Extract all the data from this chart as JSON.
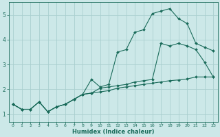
{
  "xlabel": "Humidex (Indice chaleur)",
  "bg_color": "#cce8e8",
  "grid_color": "#aacfcf",
  "line_color": "#1a6b5a",
  "xlim": [
    -0.5,
    23.5
  ],
  "ylim": [
    0.7,
    5.5
  ],
  "xticks": [
    0,
    1,
    2,
    3,
    4,
    5,
    6,
    7,
    8,
    9,
    10,
    11,
    12,
    13,
    14,
    15,
    16,
    17,
    18,
    19,
    20,
    21,
    22,
    23
  ],
  "yticks": [
    1,
    2,
    3,
    4,
    5
  ],
  "curve1_x": [
    0,
    1,
    2,
    3,
    4,
    5,
    6,
    7,
    8,
    9,
    10,
    11,
    12,
    13,
    14,
    15,
    16,
    17,
    18,
    19,
    20,
    21,
    22,
    23
  ],
  "curve1_y": [
    1.4,
    1.2,
    1.2,
    1.5,
    1.1,
    1.3,
    1.4,
    1.6,
    1.8,
    2.4,
    2.1,
    2.2,
    3.5,
    3.6,
    4.3,
    4.4,
    5.05,
    5.15,
    5.25,
    4.85,
    4.65,
    3.85,
    3.7,
    3.55
  ],
  "curve2_x": [
    0,
    1,
    2,
    3,
    4,
    5,
    6,
    7,
    8,
    9,
    10,
    11,
    12,
    13,
    14,
    15,
    16,
    17,
    18,
    19,
    20,
    21,
    22,
    23
  ],
  "curve2_y": [
    1.4,
    1.2,
    1.2,
    1.5,
    1.1,
    1.3,
    1.4,
    1.6,
    1.8,
    1.85,
    1.9,
    1.95,
    2.05,
    2.1,
    2.15,
    2.2,
    2.25,
    2.3,
    2.35,
    2.38,
    2.42,
    2.5,
    2.5,
    2.5
  ],
  "curve3_x": [
    0,
    1,
    2,
    3,
    4,
    5,
    6,
    7,
    8,
    9,
    10,
    11,
    12,
    13,
    14,
    15,
    16,
    17,
    18,
    19,
    20,
    21,
    22,
    23
  ],
  "curve3_y": [
    1.4,
    1.2,
    1.2,
    1.5,
    1.1,
    1.3,
    1.4,
    1.6,
    1.8,
    1.85,
    2.05,
    2.1,
    2.15,
    2.2,
    2.3,
    2.35,
    2.4,
    3.85,
    3.75,
    3.85,
    3.75,
    3.6,
    3.1,
    2.5
  ]
}
